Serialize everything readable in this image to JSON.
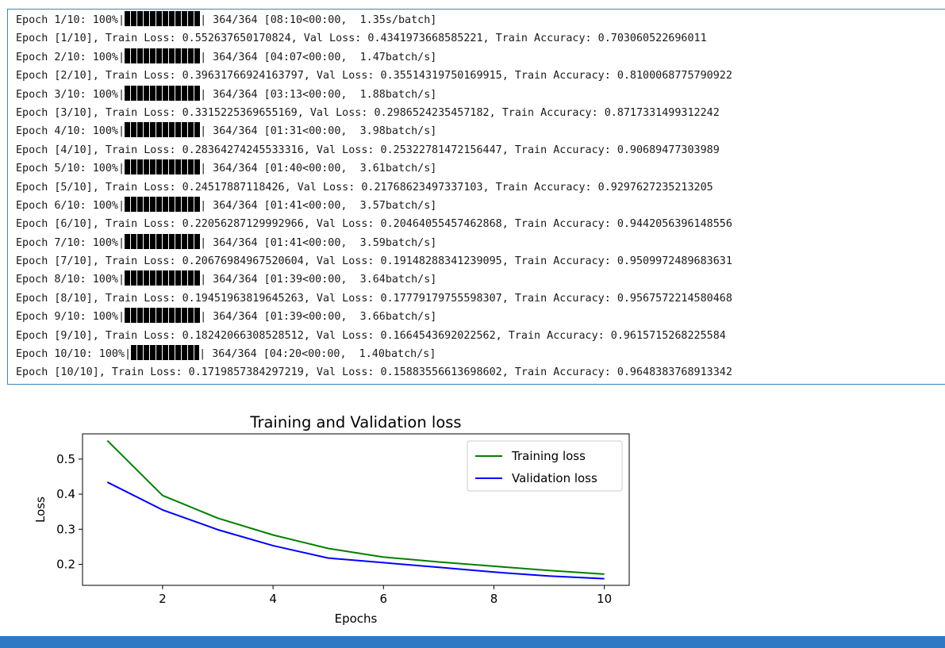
{
  "log": {
    "lines": [
      {
        "pre": "Epoch 1/10: 100%|",
        "post": "| 364/364 [08:10<00:00,  1.35s/batch]"
      },
      {
        "text": "Epoch [1/10], Train Loss: 0.552637650170824, Val Loss: 0.4341973668585221, Train Accuracy: 0.703060522696011"
      },
      {
        "pre": "Epoch 2/10: 100%|",
        "post": "| 364/364 [04:07<00:00,  1.47batch/s]"
      },
      {
        "text": "Epoch [2/10], Train Loss: 0.39631766924163797, Val Loss: 0.35514319750169915, Train Accuracy: 0.8100068775790922"
      },
      {
        "pre": "Epoch 3/10: 100%|",
        "post": "| 364/364 [03:13<00:00,  1.88batch/s]"
      },
      {
        "text": "Epoch [3/10], Train Loss: 0.3315225369655169, Val Loss: 0.2986524235457182, Train Accuracy: 0.8717331499312242"
      },
      {
        "pre": "Epoch 4/10: 100%|",
        "post": "| 364/364 [01:31<00:00,  3.98batch/s]"
      },
      {
        "text": "Epoch [4/10], Train Loss: 0.28364274245533316, Val Loss: 0.25322781472156447, Train Accuracy: 0.90689477303989"
      },
      {
        "pre": "Epoch 5/10: 100%|",
        "post": "| 364/364 [01:40<00:00,  3.61batch/s]"
      },
      {
        "text": "Epoch [5/10], Train Loss: 0.24517887118426, Val Loss: 0.21768623497337103, Train Accuracy: 0.9297627235213205"
      },
      {
        "pre": "Epoch 6/10: 100%|",
        "post": "| 364/364 [01:41<00:00,  3.57batch/s]"
      },
      {
        "text": "Epoch [6/10], Train Loss: 0.22056287129992966, Val Loss: 0.20464055457462868, Train Accuracy: 0.9442056396148556"
      },
      {
        "pre": "Epoch 7/10: 100%|",
        "post": "| 364/364 [01:41<00:00,  3.59batch/s]"
      },
      {
        "text": "Epoch [7/10], Train Loss: 0.20676984967520604, Val Loss: 0.19148288341239095, Train Accuracy: 0.9509972489683631"
      },
      {
        "pre": "Epoch 8/10: 100%|",
        "post": "| 364/364 [01:39<00:00,  3.64batch/s]"
      },
      {
        "text": "Epoch [8/10], Train Loss: 0.19451963819645263, Val Loss: 0.17779179755598307, Train Accuracy: 0.9567572214580468"
      },
      {
        "pre": "Epoch 9/10: 100%|",
        "post": "| 364/364 [01:39<00:00,  3.66batch/s]"
      },
      {
        "text": "Epoch [9/10], Train Loss: 0.18242066308528512, Val Loss: 0.1664543692022562, Train Accuracy: 0.9615715268225584"
      },
      {
        "pre": "Epoch 10/10: 100%|",
        "post": "| 364/364 [04:20<00:00,  1.40batch/s]"
      },
      {
        "text": "Epoch [10/10], Train Loss: 0.1719857384297219, Val Loss: 0.15883556613698602, Train Accuracy: 0.9648383768913342"
      }
    ]
  },
  "chart_data": {
    "type": "line",
    "title": "Training and Validation loss",
    "xlabel": "Epochs",
    "ylabel": "Loss",
    "x": [
      1,
      2,
      3,
      4,
      5,
      6,
      7,
      8,
      9,
      10
    ],
    "series": [
      {
        "name": "Training loss",
        "color": "#008000",
        "values": [
          0.552637650170824,
          0.39631766924163797,
          0.3315225369655169,
          0.28364274245533316,
          0.24517887118426,
          0.22056287129992966,
          0.20676984967520604,
          0.19451963819645263,
          0.18242066308528512,
          0.1719857384297219
        ]
      },
      {
        "name": "Validation loss",
        "color": "#0000ff",
        "values": [
          0.4341973668585221,
          0.35514319750169915,
          0.2986524235457182,
          0.25322781472156447,
          0.21768623497337103,
          0.20464055457462868,
          0.19148288341239095,
          0.17779179755598307,
          0.1664543692022562,
          0.15883556613698602
        ]
      }
    ],
    "xticks": [
      2,
      4,
      6,
      8,
      10
    ],
    "yticks": [
      0.2,
      0.3,
      0.4,
      0.5
    ],
    "xlim": [
      0.55,
      10.45
    ],
    "ylim": [
      0.14,
      0.572
    ],
    "grid": false,
    "legend_position": "upper right"
  },
  "accent_color": "#2f78c4"
}
